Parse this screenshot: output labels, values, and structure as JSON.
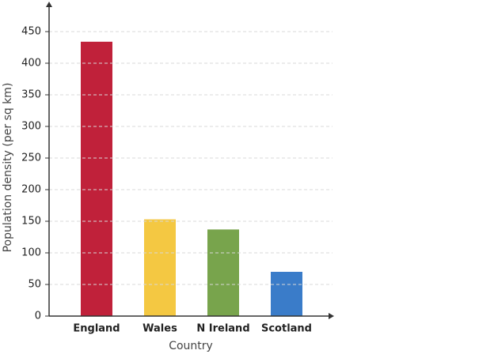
{
  "chart_data": {
    "type": "bar",
    "x_label": "Country",
    "y_label": "Population density (per sq km)",
    "categories": [
      "England",
      "Wales",
      "N Ireland",
      "Scotland"
    ],
    "values": [
      434,
      153,
      137,
      70
    ],
    "colors": [
      "#c0213a",
      "#f4c842",
      "#78a44c",
      "#3a7cc9"
    ],
    "ylim": [
      0,
      490
    ],
    "yticks": [
      0,
      50,
      100,
      150,
      200,
      250,
      300,
      350,
      400,
      450
    ],
    "grid": true
  }
}
